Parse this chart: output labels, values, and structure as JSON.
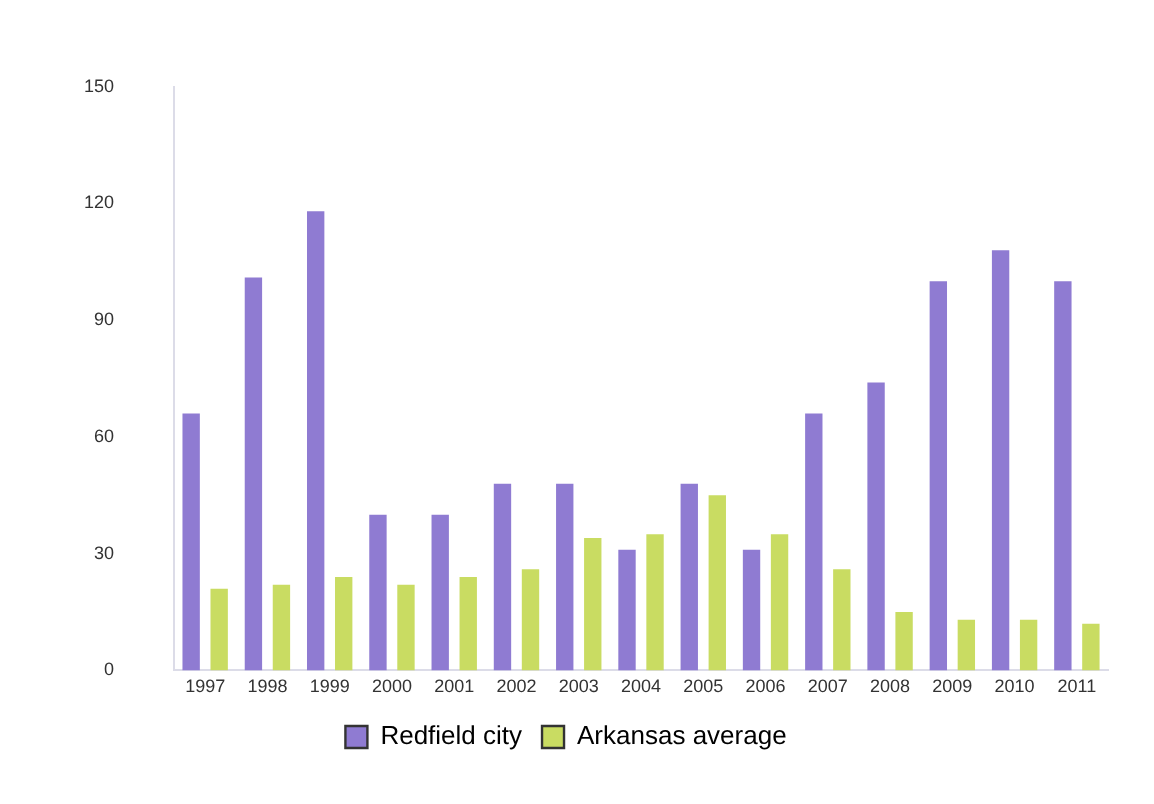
{
  "chart_data": {
    "type": "bar",
    "categories": [
      "1997",
      "1998",
      "1999",
      "2000",
      "2001",
      "2002",
      "2003",
      "2004",
      "2005",
      "2006",
      "2007",
      "2008",
      "2009",
      "2010",
      "2011"
    ],
    "series": [
      {
        "name": "Redfield city",
        "color": "#8f7bd2",
        "values": [
          66,
          101,
          118,
          40,
          40,
          48,
          48,
          31,
          48,
          31,
          66,
          74,
          100,
          108,
          100
        ]
      },
      {
        "name": "Arkansas average",
        "color": "#c9dc62",
        "values": [
          21,
          22,
          24,
          22,
          24,
          26,
          34,
          35,
          45,
          35,
          26,
          15,
          13,
          13,
          12
        ]
      }
    ],
    "ylim": [
      0,
      150
    ],
    "yticks": [
      0,
      30,
      60,
      90,
      120,
      150
    ],
    "grid": false,
    "legend": "bottom"
  }
}
